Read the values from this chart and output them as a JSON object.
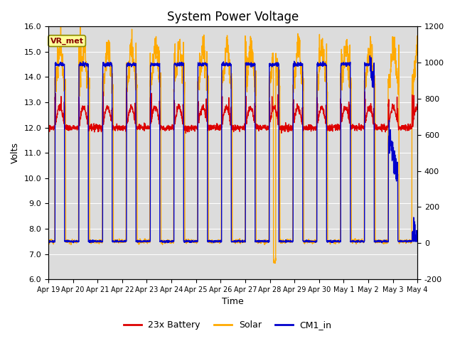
{
  "title": "System Power Voltage",
  "xlabel": "Time",
  "ylabel_left": "Volts",
  "ylim_left": [
    6.0,
    16.0
  ],
  "ylim_right": [
    -200,
    1200
  ],
  "yticks_left": [
    6.0,
    7.0,
    8.0,
    9.0,
    10.0,
    11.0,
    12.0,
    13.0,
    14.0,
    15.0,
    16.0
  ],
  "yticks_right": [
    -200,
    0,
    200,
    400,
    600,
    800,
    1000,
    1200
  ],
  "xtick_labels": [
    "Apr 19",
    "Apr 20",
    "Apr 21",
    "Apr 22",
    "Apr 23",
    "Apr 24",
    "Apr 25",
    "Apr 26",
    "Apr 27",
    "Apr 28",
    "Apr 29",
    "Apr 30",
    "May 1",
    "May 2",
    "May 3",
    "May 4"
  ],
  "annotation_text": "VR_met",
  "bg_color": "#dcdcdc",
  "fig_color": "#ffffff",
  "color_battery": "#dd0000",
  "color_solar": "#ffaa00",
  "color_cm1": "#0000cc",
  "legend_labels": [
    "23x Battery",
    "Solar",
    "CM1_in"
  ],
  "title_fontsize": 12,
  "axis_fontsize": 9,
  "tick_fontsize": 8,
  "linewidth": 1.0
}
